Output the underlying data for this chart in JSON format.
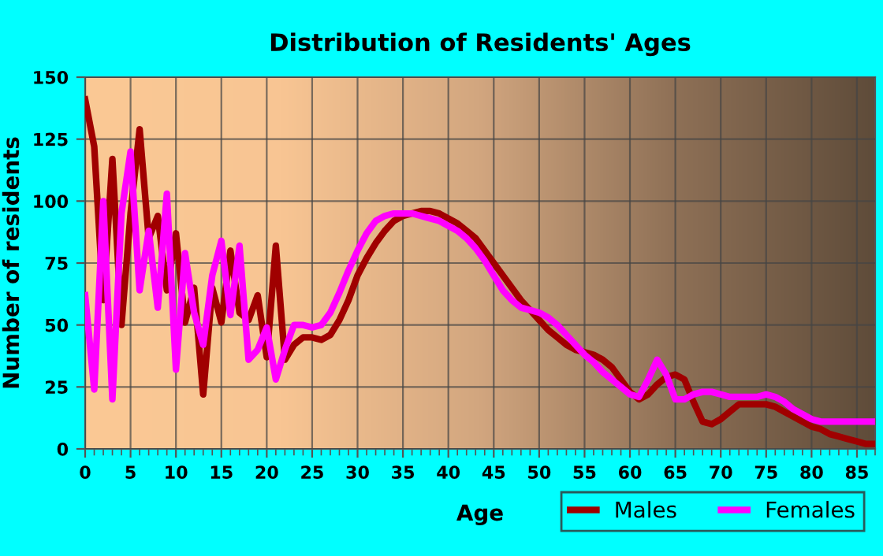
{
  "chart_data": {
    "type": "line",
    "title": "Distribution of Residents' Ages",
    "xlabel": "Age",
    "ylabel": "Number of residents",
    "x": [
      0,
      1,
      2,
      3,
      4,
      5,
      6,
      7,
      8,
      9,
      10,
      11,
      12,
      13,
      14,
      15,
      16,
      17,
      18,
      19,
      20,
      21,
      22,
      23,
      24,
      25,
      26,
      27,
      28,
      29,
      30,
      31,
      32,
      33,
      34,
      35,
      36,
      37,
      38,
      39,
      40,
      41,
      42,
      43,
      44,
      45,
      46,
      47,
      48,
      49,
      50,
      51,
      52,
      53,
      54,
      55,
      56,
      57,
      58,
      59,
      60,
      61,
      62,
      63,
      64,
      65,
      66,
      67,
      68,
      69,
      70,
      71,
      72,
      73,
      74,
      75,
      76,
      77,
      78,
      79,
      80,
      81,
      82,
      83,
      84,
      85,
      86,
      87
    ],
    "series": [
      {
        "name": "Males",
        "color": "#a00000",
        "values": [
          141,
          122,
          60,
          117,
          50,
          95,
          129,
          85,
          94,
          64,
          87,
          51,
          65,
          22,
          65,
          51,
          80,
          55,
          52,
          62,
          37,
          82,
          36,
          42,
          45,
          45,
          44,
          46,
          52,
          60,
          70,
          77,
          83,
          88,
          92,
          94,
          95,
          96,
          96,
          95,
          93,
          91,
          88,
          85,
          80,
          75,
          70,
          65,
          60,
          56,
          52,
          48,
          45,
          42,
          40,
          39,
          38,
          36,
          33,
          28,
          23,
          20,
          22,
          26,
          29,
          30,
          28,
          19,
          11,
          10,
          12,
          15,
          18,
          18,
          18,
          18,
          17,
          15,
          13,
          11,
          9,
          8,
          6,
          5,
          4,
          3,
          2,
          2
        ]
      },
      {
        "name": "Females",
        "color": "#ff00ff",
        "values": [
          62,
          24,
          100,
          20,
          95,
          120,
          64,
          88,
          57,
          103,
          32,
          79,
          55,
          42,
          70,
          84,
          54,
          82,
          36,
          40,
          49,
          28,
          40,
          50,
          50,
          49,
          50,
          55,
          63,
          72,
          80,
          87,
          92,
          94,
          95,
          95,
          95,
          94,
          93,
          92,
          90,
          88,
          85,
          81,
          76,
          70,
          64,
          60,
          57,
          56,
          55,
          53,
          50,
          46,
          42,
          38,
          35,
          31,
          28,
          25,
          22,
          21,
          28,
          36,
          30,
          20,
          20,
          22,
          23,
          23,
          22,
          21,
          21,
          21,
          21,
          22,
          21,
          19,
          16,
          14,
          12,
          11,
          11,
          11,
          11,
          11,
          11,
          11
        ]
      }
    ],
    "xlim": [
      0,
      87
    ],
    "xticks": [
      0,
      5,
      10,
      15,
      20,
      25,
      30,
      35,
      40,
      45,
      50,
      55,
      60,
      65,
      70,
      75,
      80,
      85
    ],
    "ylim": [
      0,
      150
    ],
    "yticks": [
      0,
      25,
      50,
      75,
      100,
      125,
      150
    ],
    "grid": true,
    "legend": "bottom right",
    "marker": "none",
    "line_style": "solid"
  }
}
